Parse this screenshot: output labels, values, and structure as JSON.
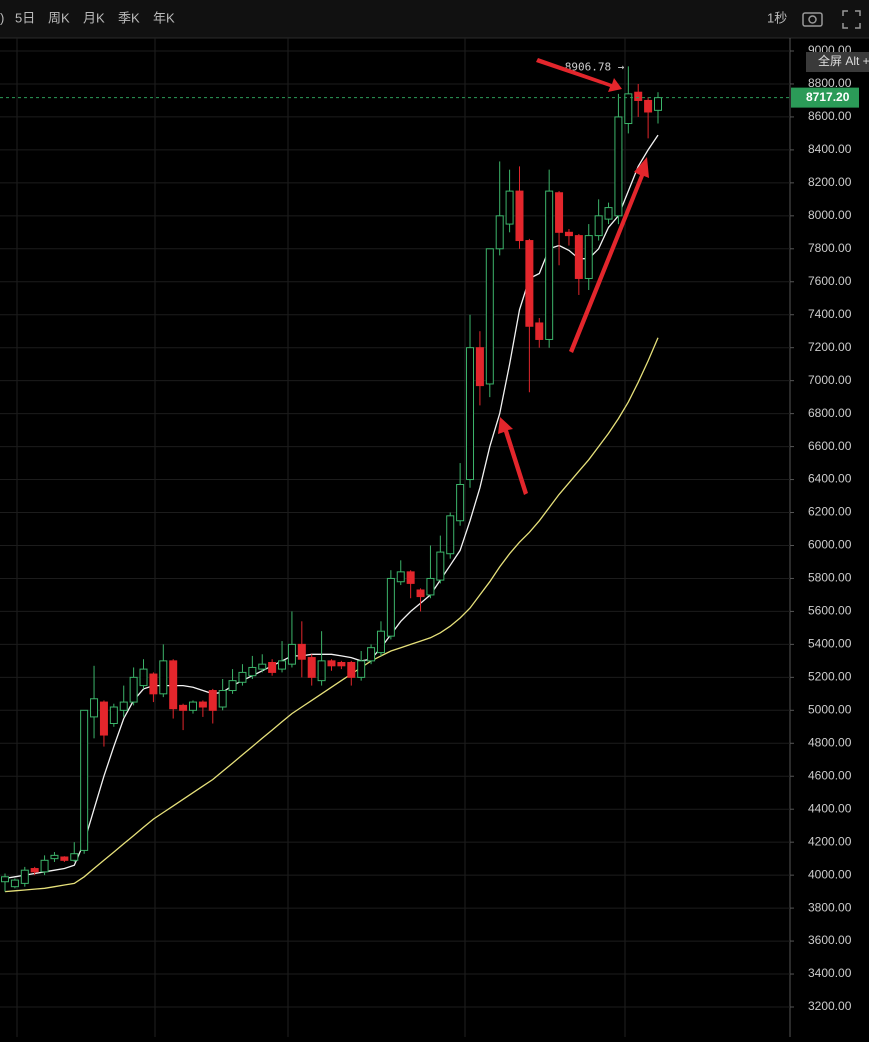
{
  "toolbar": {
    "items": [
      ")",
      "5日",
      "周K",
      "月K",
      "季K",
      "年K"
    ],
    "interval": "1秒",
    "tooltip": "全屏 Alt +"
  },
  "chart_data": {
    "type": "candlestick",
    "ohlc": {
      "open": [
        3960,
        3930,
        3950,
        4040,
        4020,
        4100,
        4110,
        4090,
        4150,
        4960,
        5050,
        4920,
        5000,
        5050,
        5150,
        5220,
        5100,
        5300,
        5030,
        5000,
        5050,
        5120,
        5020,
        5120,
        5170,
        5210,
        5250,
        5290,
        5250,
        5280,
        5400,
        5320,
        5180,
        5300,
        5290,
        5290,
        5200,
        5300,
        5350,
        5450,
        5780,
        5840,
        5730,
        5700,
        5790,
        5950,
        6150,
        6400,
        7200,
        6980,
        7800,
        7950,
        8150,
        7850,
        7350,
        7250,
        8140,
        7900,
        7880,
        7620,
        7880,
        7980,
        8000,
        8560,
        8750,
        8700,
        8640
      ],
      "high": [
        4010,
        3980,
        4050,
        4050,
        4120,
        4140,
        4115,
        4200,
        5000,
        5270,
        5060,
        5040,
        5150,
        5260,
        5310,
        5230,
        5400,
        5310,
        5040,
        5060,
        5060,
        5130,
        5190,
        5250,
        5280,
        5330,
        5340,
        5310,
        5420,
        5600,
        5540,
        5340,
        5480,
        5310,
        5300,
        5300,
        5360,
        5400,
        5540,
        5850,
        5910,
        5850,
        5740,
        6000,
        6060,
        6200,
        6500,
        7400,
        7300,
        7800,
        8330,
        8280,
        8300,
        7860,
        7380,
        8280,
        8150,
        7920,
        7890,
        7950,
        8100,
        8080,
        8740,
        8906.78,
        8800,
        8720,
        8750
      ],
      "low": [
        3900,
        3920,
        3930,
        4000,
        4000,
        4080,
        4080,
        4080,
        4130,
        4830,
        4780,
        4900,
        4960,
        5030,
        5130,
        5050,
        5080,
        4950,
        4880,
        4980,
        4960,
        4920,
        5000,
        5100,
        5150,
        5190,
        5230,
        5210,
        5230,
        5260,
        5200,
        5150,
        5150,
        5240,
        5250,
        5150,
        5180,
        5280,
        5330,
        5430,
        5760,
        5680,
        5600,
        5680,
        5770,
        5920,
        6120,
        6350,
        6850,
        6900,
        7760,
        7900,
        7800,
        6930,
        7200,
        7200,
        7700,
        7820,
        7520,
        7550,
        7850,
        7950,
        7950,
        8500,
        8600,
        8470,
        8560
      ],
      "close": [
        3990,
        3970,
        4030,
        4020,
        4090,
        4120,
        4090,
        4130,
        5000,
        5070,
        4850,
        5020,
        5050,
        5200,
        5250,
        5100,
        5300,
        5010,
        5000,
        5050,
        5020,
        5000,
        5120,
        5180,
        5230,
        5260,
        5280,
        5230,
        5300,
        5400,
        5310,
        5200,
        5300,
        5270,
        5270,
        5200,
        5300,
        5380,
        5480,
        5800,
        5840,
        5770,
        5690,
        5800,
        5960,
        6180,
        6370,
        7200,
        6970,
        7800,
        8000,
        8150,
        7850,
        7330,
        7250,
        8150,
        7900,
        7880,
        7620,
        7880,
        8000,
        8050,
        8600,
        8740,
        8700,
        8630,
        8717.2
      ]
    },
    "up_color": "#3cb46a",
    "down_color": "#e3262c",
    "lines": [
      {
        "color": "#f2f2f2",
        "values": [
          3980,
          3990,
          4000,
          4010,
          4020,
          4030,
          4040,
          4060,
          4200,
          4400,
          4600,
          4780,
          4950,
          5060,
          5130,
          5150,
          5150,
          5150,
          5150,
          5140,
          5120,
          5100,
          5110,
          5150,
          5180,
          5210,
          5240,
          5270,
          5300,
          5330,
          5330,
          5340,
          5340,
          5340,
          5330,
          5320,
          5300,
          5310,
          5380,
          5460,
          5540,
          5600,
          5650,
          5700,
          5790,
          5880,
          5970,
          6150,
          6350,
          6600,
          6800,
          7100,
          7430,
          7620,
          7650,
          7800,
          7820,
          7790,
          7740,
          7740,
          7800,
          7930,
          8000,
          8150,
          8300,
          8400,
          8490
        ]
      },
      {
        "color": "#e6e07a",
        "values": [
          3900,
          3905,
          3910,
          3915,
          3920,
          3930,
          3940,
          3950,
          3990,
          4040,
          4090,
          4140,
          4190,
          4240,
          4290,
          4340,
          4380,
          4420,
          4460,
          4500,
          4540,
          4580,
          4630,
          4680,
          4730,
          4780,
          4830,
          4880,
          4930,
          4980,
          5020,
          5060,
          5100,
          5140,
          5180,
          5220,
          5260,
          5300,
          5330,
          5360,
          5380,
          5400,
          5420,
          5440,
          5470,
          5510,
          5560,
          5620,
          5700,
          5780,
          5870,
          5950,
          6020,
          6080,
          6150,
          6230,
          6310,
          6380,
          6450,
          6520,
          6600,
          6680,
          6770,
          6870,
          6990,
          7120,
          7260
        ]
      }
    ],
    "max_label": "8906.78 →",
    "last_price": {
      "value": 8717.2,
      "label": "8717.20",
      "color": "#2b9b58"
    },
    "ylim": [
      3200,
      9000
    ],
    "yticks": [
      {
        "value": 3200,
        "label": "3200.00"
      },
      {
        "value": 3400,
        "label": "3400.00"
      },
      {
        "value": 3600,
        "label": "3600.00"
      },
      {
        "value": 3800,
        "label": "3800.00"
      },
      {
        "value": 4000,
        "label": "4000.00"
      },
      {
        "value": 4200,
        "label": "4200.00"
      },
      {
        "value": 4400,
        "label": "4400.00"
      },
      {
        "value": 4600,
        "label": "4600.00"
      },
      {
        "value": 4800,
        "label": "4800.00"
      },
      {
        "value": 5000,
        "label": "5000.00"
      },
      {
        "value": 5200,
        "label": "5200.00"
      },
      {
        "value": 5400,
        "label": "5400.00"
      },
      {
        "value": 5600,
        "label": "5600.00"
      },
      {
        "value": 5800,
        "label": "5800.00"
      },
      {
        "value": 6000,
        "label": "6000.00"
      },
      {
        "value": 6200,
        "label": "6200.00"
      },
      {
        "value": 6400,
        "label": "6400.00"
      },
      {
        "value": 6600,
        "label": "6600.00"
      },
      {
        "value": 6800,
        "label": "6800.00"
      },
      {
        "value": 7000,
        "label": "7000.00"
      },
      {
        "value": 7200,
        "label": "7200.00"
      },
      {
        "value": 7400,
        "label": "7400.00"
      },
      {
        "value": 7600,
        "label": "7600.00"
      },
      {
        "value": 7800,
        "label": "7800.00"
      },
      {
        "value": 8000,
        "label": "8000.00"
      },
      {
        "value": 8200,
        "label": "8200.00"
      },
      {
        "value": 8400,
        "label": "8400.00"
      },
      {
        "value": 8600,
        "label": "8600.00"
      },
      {
        "value": 8800,
        "label": "8800.00"
      },
      {
        "value": 9000,
        "label": "9000.00"
      }
    ],
    "grid": true
  }
}
